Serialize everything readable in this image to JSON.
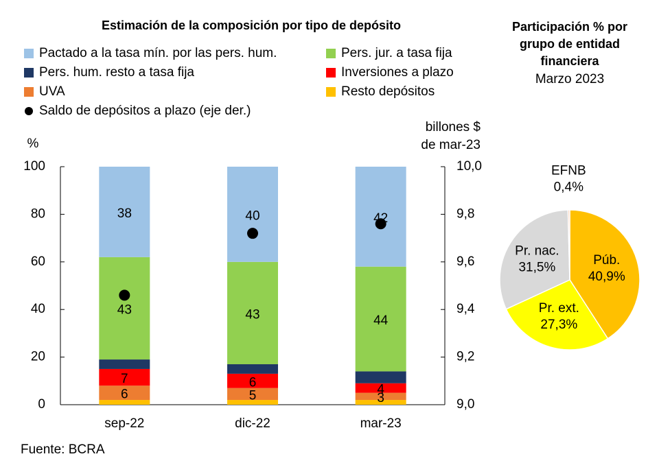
{
  "chart_data": [
    {
      "type": "stacked-bar",
      "title": "Estimación de la composición por tipo de depósito",
      "ylabel": "%",
      "y2label": [
        "billones $",
        "de mar-23"
      ],
      "categories": [
        "sep-22",
        "dic-22",
        "mar-23"
      ],
      "series": [
        {
          "name": "Pactado a la tasa mín. por las pers. hum.",
          "color": "#9DC3E6",
          "values": [
            38,
            40,
            42
          ],
          "labels": true
        },
        {
          "name": "Pers. jur. a tasa fija",
          "color": "#92D050",
          "values": [
            43,
            43,
            44
          ],
          "labels": true
        },
        {
          "name": "Pers. hum. resto a tasa fija",
          "color": "#1F3864",
          "values": [
            4,
            4,
            5
          ],
          "labels": false
        },
        {
          "name": "Inversiones a plazo",
          "color": "#FF0000",
          "values": [
            7,
            6,
            4
          ],
          "labels": true
        },
        {
          "name": "UVA",
          "color": "#ED7D31",
          "values": [
            6,
            5,
            3
          ],
          "labels": true
        },
        {
          "name": "Resto depósitos",
          "color": "#FFC000",
          "values": [
            2,
            2,
            2
          ],
          "labels": false
        },
        {
          "name": "Saldo de depósitos a plazo (eje der.)",
          "color": "#000000",
          "values": [
            9.46,
            9.72,
            9.76
          ],
          "axis": "y2",
          "marker": "dot"
        }
      ],
      "ylim": [
        0,
        100
      ],
      "yticks": [
        0,
        20,
        40,
        60,
        80,
        100
      ],
      "y2lim": [
        9.0,
        10.0
      ],
      "y2ticks": [
        {
          "value": 9.0,
          "label": "9,0"
        },
        {
          "value": 9.2,
          "label": "9,2"
        },
        {
          "value": 9.4,
          "label": "9,4"
        },
        {
          "value": 9.6,
          "label": "9,6"
        },
        {
          "value": 9.8,
          "label": "9,8"
        },
        {
          "value": 10.0,
          "label": "10,0"
        }
      ],
      "source": "Fuente: BCRA"
    },
    {
      "type": "pie",
      "title": [
        "Participación % por",
        "grupo de entidad",
        "financiera"
      ],
      "subtitle": "Marzo 2023",
      "categories": [
        "Púb.",
        "Pr. ext.",
        "Pr. nac.",
        "EFNB"
      ],
      "values": [
        40.9,
        27.3,
        31.5,
        0.4
      ],
      "value_labels": [
        "40,9%",
        "27,3%",
        "31,5%",
        "0,4%"
      ],
      "colors": [
        "#FFC000",
        "#FFFF00",
        "#D9D9D9",
        "#F8CBAD"
      ]
    }
  ]
}
